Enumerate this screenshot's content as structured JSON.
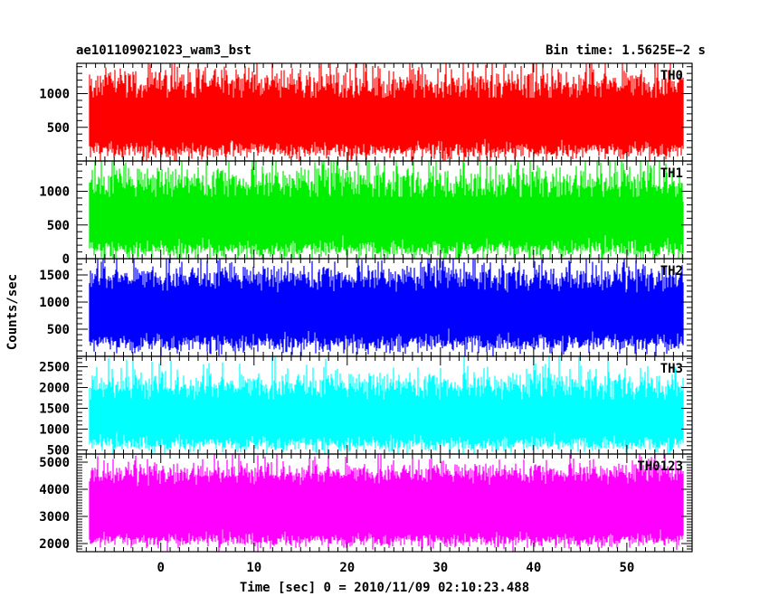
{
  "header": {
    "title_left": "ae101109021023_wam3_bst",
    "title_right": "Bin time: 1.5625E−2 s"
  },
  "axes": {
    "xlabel": "Time [sec] 0 = 2010/11/09 02:10:23.488",
    "ylabel": "Counts/sec"
  },
  "chart_data": {
    "type": "line",
    "x_range": [
      -9,
      57
    ],
    "x_data_range": [
      -7.6,
      56.0
    ],
    "bin_time": 0.015625,
    "x_ticks": [
      0,
      10,
      20,
      30,
      40,
      50
    ],
    "grid": false,
    "panels": [
      {
        "label": "TH0",
        "color": "#ff0000",
        "ylim": [
          0,
          1450
        ],
        "yticks": [
          500,
          1000
        ],
        "baseline": 680,
        "low_mean": 200,
        "low_spread": 120,
        "high_mean": 1150,
        "high_spread": 250
      },
      {
        "label": "TH1",
        "color": "#00ee00",
        "ylim": [
          0,
          1450
        ],
        "yticks": [
          0,
          500,
          1000
        ],
        "baseline": 660,
        "low_mean": 180,
        "low_spread": 130,
        "high_mean": 1130,
        "high_spread": 260
      },
      {
        "label": "TH2",
        "color": "#0000ff",
        "ylim": [
          0,
          1800
        ],
        "yticks": [
          500,
          1000,
          1500
        ],
        "baseline": 850,
        "low_mean": 300,
        "low_spread": 170,
        "high_mean": 1450,
        "high_spread": 250
      },
      {
        "label": "TH3",
        "color": "#00ffff",
        "ylim": [
          400,
          2750
        ],
        "yticks": [
          500,
          1000,
          1500,
          2000,
          2500
        ],
        "baseline": 1300,
        "low_mean": 700,
        "low_spread": 180,
        "high_mean": 2050,
        "high_spread": 350
      },
      {
        "label": "TH0123",
        "color": "#ff00ff",
        "ylim": [
          1700,
          5300
        ],
        "yticks": [
          2000,
          3000,
          4000,
          5000
        ],
        "baseline": 3400,
        "low_mean": 2200,
        "low_spread": 250,
        "high_mean": 4600,
        "high_spread": 400
      }
    ]
  }
}
